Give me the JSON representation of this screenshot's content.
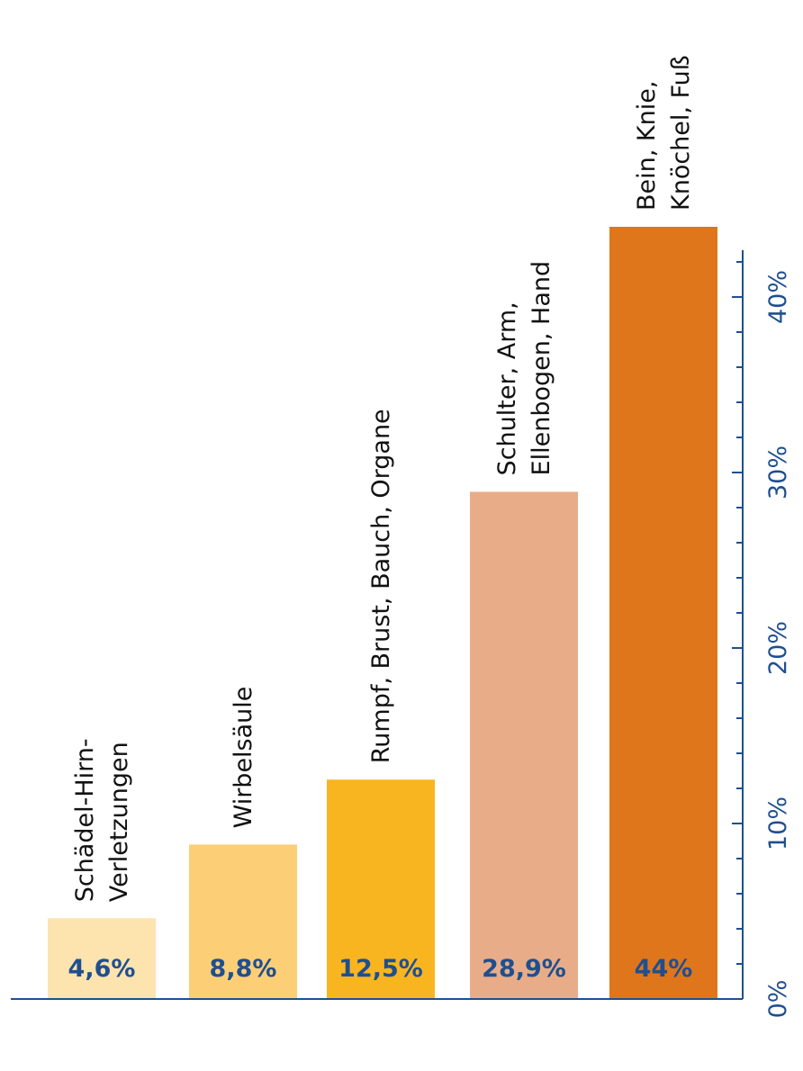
{
  "chart_data": {
    "type": "bar",
    "orientation": "vertical",
    "categories": [
      [
        "Schädel-Hirn-",
        "Verletzungen"
      ],
      [
        "Wirbelsäule"
      ],
      [
        "Rumpf, Brust, Bauch, Organe"
      ],
      [
        "Schulter, Arm,",
        "Ellenbogen, Hand"
      ],
      [
        "Bein, Knie,",
        "Knöchel, Fuß"
      ]
    ],
    "values": [
      4.6,
      8.8,
      12.5,
      28.9,
      44
    ],
    "value_labels": [
      "4,6%",
      "8,8%",
      "12,5%",
      "28,9%",
      "44%"
    ],
    "bar_colors": [
      "#fde3ae",
      "#fccf77",
      "#f9b520",
      "#e8ad88",
      "#e0761b"
    ],
    "ylim": [
      0,
      40
    ],
    "yticks": [
      0,
      10,
      20,
      30,
      40
    ],
    "ytick_labels": [
      "0%",
      "10%",
      "20%",
      "30%",
      "40%"
    ],
    "axis_color": "#1f4f8f",
    "value_label_color": "#1f4f8f",
    "grid": false,
    "legend": "none",
    "label_rotation": "vertical"
  }
}
